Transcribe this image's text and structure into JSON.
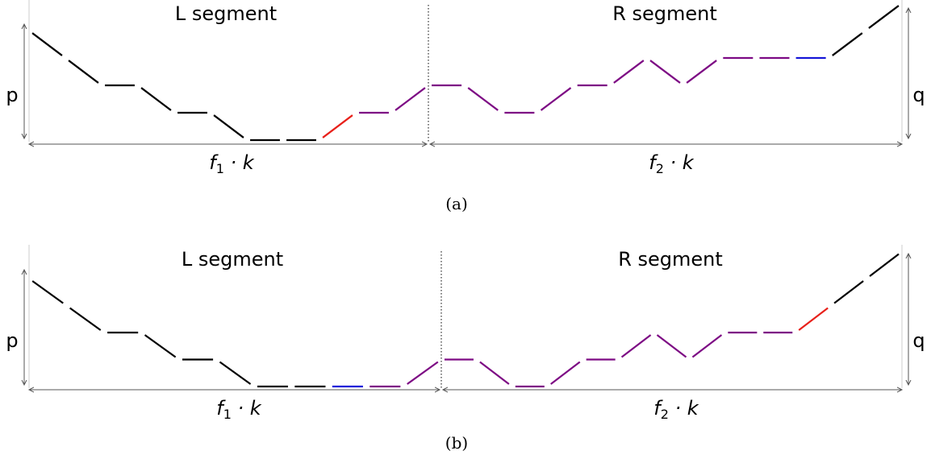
{
  "colors": {
    "black": "#000000",
    "red": "#e8201a",
    "blue": "#1616d8",
    "purple": "#7d0a84",
    "axis": "#555555"
  },
  "panels": [
    {
      "caption": "(a)",
      "left_label": "L segment",
      "right_label": "R segment",
      "left_side": "p",
      "right_side": "q",
      "left_width_main": "f",
      "left_width_sub": "1",
      "left_width_tail": " · k",
      "right_width_main": "f",
      "right_width_sub": "2",
      "right_width_tail": " · k",
      "steps": [
        {
          "dy": -1,
          "color": "black"
        },
        {
          "dy": -1,
          "color": "black"
        },
        {
          "dy": 0,
          "color": "black"
        },
        {
          "dy": -1,
          "color": "black"
        },
        {
          "dy": 0,
          "color": "black"
        },
        {
          "dy": -1,
          "color": "black"
        },
        {
          "dy": 0,
          "color": "black"
        },
        {
          "dy": 0,
          "color": "black"
        },
        {
          "dy": 1,
          "color": "red"
        },
        {
          "dy": 0,
          "color": "purple"
        },
        {
          "dy": 1,
          "color": "purple"
        },
        {
          "dy": 0,
          "color": "purple"
        },
        {
          "dy": -1,
          "color": "purple"
        },
        {
          "dy": 0,
          "color": "purple"
        },
        {
          "dy": 1,
          "color": "purple"
        },
        {
          "dy": 0,
          "color": "purple"
        },
        {
          "dy": 1,
          "color": "purple"
        },
        {
          "dy": -1,
          "color": "purple"
        },
        {
          "dy": 1,
          "color": "purple"
        },
        {
          "dy": 0,
          "color": "purple"
        },
        {
          "dy": 0,
          "color": "purple"
        },
        {
          "dy": 0,
          "color": "blue"
        },
        {
          "dy": 1,
          "color": "black"
        },
        {
          "dy": 1,
          "color": "black"
        }
      ],
      "start_level": 4,
      "divider_after_step": 11
    },
    {
      "caption": "(b)",
      "left_label": "L segment",
      "right_label": "R segment",
      "left_side": "p",
      "right_side": "q",
      "left_width_main": "f",
      "left_width_sub": "1",
      "left_width_tail": " · k",
      "right_width_main": "f",
      "right_width_sub": "2",
      "right_width_tail": " · k",
      "steps": [
        {
          "dy": -1,
          "color": "black"
        },
        {
          "dy": -1,
          "color": "black"
        },
        {
          "dy": 0,
          "color": "black"
        },
        {
          "dy": -1,
          "color": "black"
        },
        {
          "dy": 0,
          "color": "black"
        },
        {
          "dy": -1,
          "color": "black"
        },
        {
          "dy": 0,
          "color": "black"
        },
        {
          "dy": 0,
          "color": "black"
        },
        {
          "dy": 0,
          "color": "blue"
        },
        {
          "dy": 0,
          "color": "purple"
        },
        {
          "dy": 1,
          "color": "purple"
        },
        {
          "dy": 0,
          "color": "purple"
        },
        {
          "dy": -1,
          "color": "purple"
        },
        {
          "dy": 0,
          "color": "purple"
        },
        {
          "dy": 1,
          "color": "purple"
        },
        {
          "dy": 0,
          "color": "purple"
        },
        {
          "dy": 1,
          "color": "purple"
        },
        {
          "dy": -1,
          "color": "purple"
        },
        {
          "dy": 1,
          "color": "purple"
        },
        {
          "dy": 0,
          "color": "purple"
        },
        {
          "dy": 0,
          "color": "purple"
        },
        {
          "dy": 1,
          "color": "red"
        },
        {
          "dy": 1,
          "color": "black"
        },
        {
          "dy": 1,
          "color": "black"
        }
      ],
      "start_level": 4,
      "divider_after_step": 11
    }
  ]
}
